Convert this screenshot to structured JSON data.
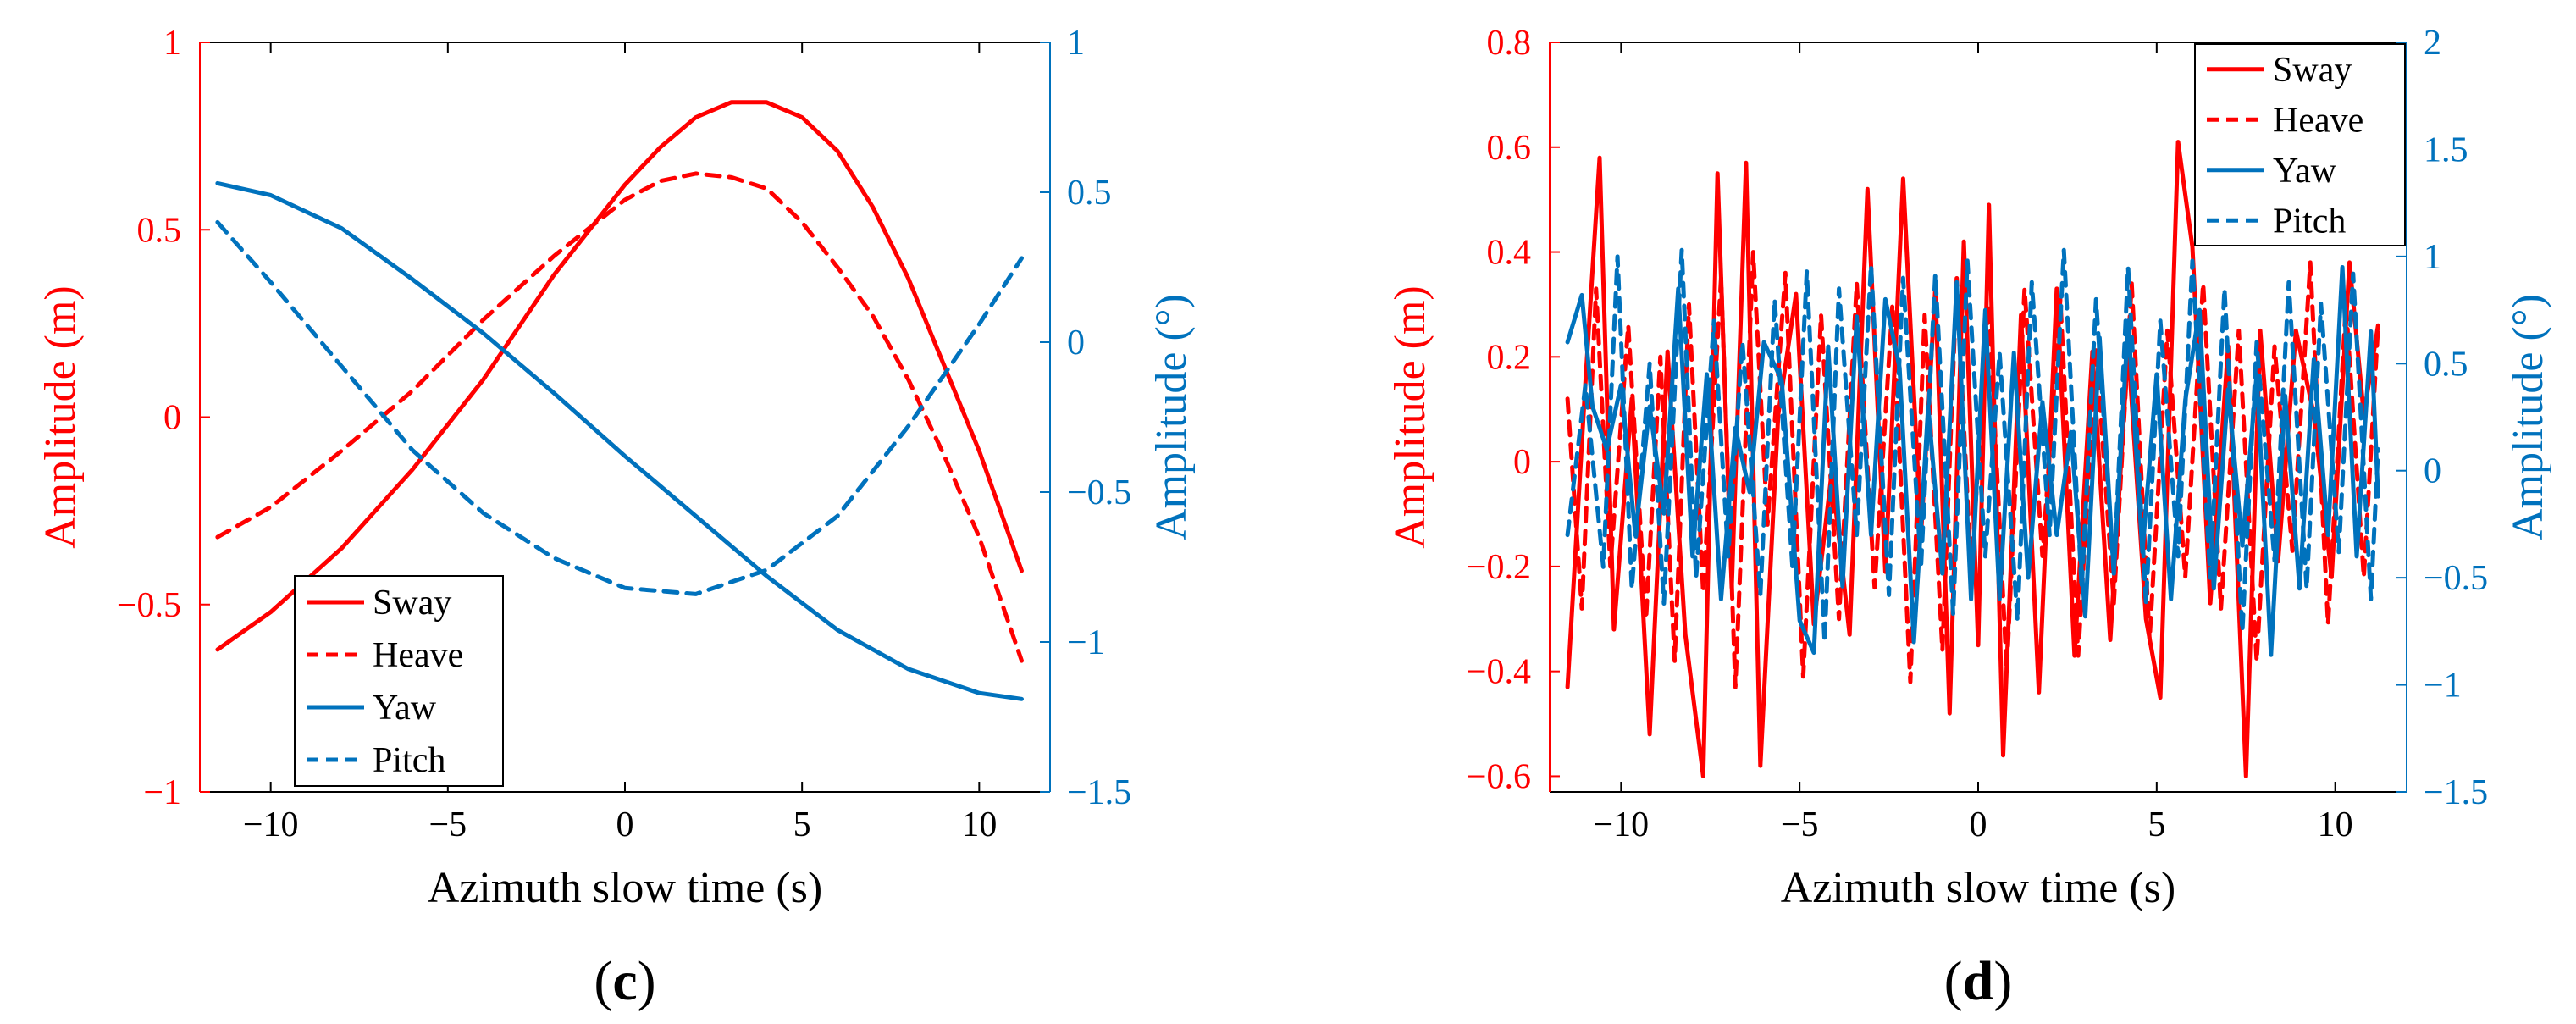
{
  "colors": {
    "red": "#ff0000",
    "blue": "#0072bd",
    "black": "#000000"
  },
  "chart_data": [
    {
      "panel_label": "c",
      "type": "line",
      "xlabel": "Azimuth slow time (s)",
      "ylabel_left": "Amplitude (m)",
      "ylabel_right": "Amplitude (°)",
      "xlim": [
        -12,
        12
      ],
      "xticks": [
        -10,
        -5,
        0,
        5,
        10
      ],
      "ylim_left": [
        -1,
        1
      ],
      "yticks_left": [
        -1,
        -0.5,
        0,
        0.5,
        1
      ],
      "ytick_labels_left": [
        "−1",
        "−0.5",
        "0",
        "0.5",
        "1"
      ],
      "ylim_right": [
        -1.5,
        1
      ],
      "yticks_right": [
        -1.5,
        -1,
        -0.5,
        0,
        0.5,
        1
      ],
      "ytick_labels_right": [
        "−1.5",
        "−1",
        "−0.5",
        "0",
        "0.5",
        "1"
      ],
      "xtick_labels": [
        "−10",
        "−5",
        "0",
        "5",
        "10"
      ],
      "legend_position": "bottom-left",
      "legend": [
        "Sway",
        "Heave",
        "Yaw",
        "Pitch"
      ],
      "series": [
        {
          "name": "Sway",
          "axis": "left",
          "color": "red",
          "style": "solid",
          "x": [
            -11.5,
            -10,
            -8,
            -6,
            -4,
            -2,
            0,
            1,
            2,
            3,
            4,
            5,
            6,
            7,
            8,
            9,
            10,
            11.2
          ],
          "y": [
            -0.62,
            -0.52,
            -0.35,
            -0.14,
            0.1,
            0.38,
            0.62,
            0.72,
            0.8,
            0.84,
            0.84,
            0.8,
            0.71,
            0.56,
            0.37,
            0.14,
            -0.09,
            -0.41
          ]
        },
        {
          "name": "Heave",
          "axis": "left",
          "color": "red",
          "style": "dashed",
          "x": [
            -11.5,
            -10,
            -8,
            -6,
            -4,
            -2,
            0,
            1,
            2,
            3,
            4,
            5,
            6,
            7,
            8,
            9,
            10,
            11.2
          ],
          "y": [
            -0.32,
            -0.24,
            -0.09,
            0.07,
            0.26,
            0.43,
            0.58,
            0.63,
            0.65,
            0.64,
            0.61,
            0.52,
            0.4,
            0.27,
            0.1,
            -0.1,
            -0.32,
            -0.65
          ]
        },
        {
          "name": "Yaw",
          "axis": "right",
          "color": "blue",
          "style": "solid",
          "x": [
            -11.5,
            -10,
            -8,
            -6,
            -4,
            -2,
            0,
            2,
            4,
            6,
            8,
            10,
            11.2
          ],
          "y": [
            0.53,
            0.49,
            0.38,
            0.21,
            0.03,
            -0.17,
            -0.38,
            -0.58,
            -0.78,
            -0.96,
            -1.09,
            -1.17,
            -1.19
          ]
        },
        {
          "name": "Pitch",
          "axis": "right",
          "color": "blue",
          "style": "dashed",
          "x": [
            -11.5,
            -10,
            -8,
            -6,
            -4,
            -2,
            0,
            2,
            4,
            6,
            8,
            10,
            11.2
          ],
          "y": [
            0.4,
            0.2,
            -0.08,
            -0.36,
            -0.57,
            -0.72,
            -0.82,
            -0.84,
            -0.76,
            -0.58,
            -0.28,
            0.06,
            0.28
          ]
        }
      ]
    },
    {
      "panel_label": "d",
      "type": "line",
      "xlabel": "Azimuth slow time (s)",
      "ylabel_left": "Amplitude (m)",
      "ylabel_right": "Amplitude (°)",
      "xlim": [
        -12,
        12
      ],
      "xticks": [
        -10,
        -5,
        0,
        5,
        10
      ],
      "ylim_left": [
        -0.63,
        0.8
      ],
      "yticks_left": [
        -0.6,
        -0.4,
        -0.2,
        0,
        0.2,
        0.4,
        0.6,
        0.8
      ],
      "ytick_labels_left": [
        "−0.6",
        "−0.4",
        "−0.2",
        "0",
        "0.2",
        "0.4",
        "0.6",
        "0.8"
      ],
      "ylim_right": [
        -1.5,
        2
      ],
      "yticks_right": [
        -1.5,
        -1,
        -0.5,
        0,
        0.5,
        1,
        1.5,
        2
      ],
      "ytick_labels_right": [
        "−1.5",
        "−1",
        "−0.5",
        "0",
        "0.5",
        "1",
        "1.5",
        "2"
      ],
      "xtick_labels": [
        "−10",
        "−5",
        "0",
        "5",
        "10"
      ],
      "legend_position": "top-right",
      "legend": [
        "Sway",
        "Heave",
        "Yaw",
        "Pitch"
      ],
      "series": [
        {
          "name": "Sway",
          "axis": "left",
          "color": "red",
          "style": "solid",
          "x": [
            -11.5,
            -11.0,
            -10.6,
            -10.2,
            -9.7,
            -9.2,
            -8.7,
            -8.2,
            -7.7,
            -7.3,
            -6.9,
            -6.5,
            -6.1,
            -5.6,
            -5.1,
            -4.6,
            -4.1,
            -3.6,
            -3.1,
            -2.6,
            -2.1,
            -1.6,
            -1.2,
            -0.8,
            -0.4,
            0.0,
            0.3,
            0.7,
            1.2,
            1.7,
            2.2,
            2.7,
            3.2,
            3.7,
            4.2,
            4.7,
            5.1,
            5.6,
            6.0,
            6.5,
            7.0,
            7.5,
            7.9,
            8.4,
            8.9,
            9.4,
            9.9,
            10.4,
            10.8,
            11.2
          ],
          "y": [
            -0.43,
            0.15,
            0.58,
            -0.32,
            0.12,
            -0.52,
            0.21,
            -0.33,
            -0.6,
            0.55,
            -0.24,
            0.57,
            -0.58,
            0.09,
            0.32,
            -0.31,
            -0.02,
            -0.33,
            0.52,
            -0.21,
            0.54,
            -0.14,
            0.33,
            -0.48,
            0.42,
            -0.35,
            0.49,
            -0.56,
            0.28,
            -0.44,
            0.33,
            -0.37,
            0.21,
            -0.34,
            0.22,
            -0.3,
            -0.45,
            0.61,
            0.41,
            -0.27,
            0.22,
            -0.6,
            0.25,
            -0.19,
            0.25,
            0.09,
            -0.22,
            0.38,
            0.09,
            0.26
          ]
        },
        {
          "name": "Heave",
          "axis": "left",
          "color": "red",
          "style": "dashed",
          "x": [
            -11.5,
            -11.1,
            -10.7,
            -10.3,
            -9.8,
            -9.3,
            -8.9,
            -8.5,
            -8.1,
            -7.7,
            -7.2,
            -6.8,
            -6.3,
            -5.9,
            -5.4,
            -4.9,
            -4.4,
            -3.9,
            -3.4,
            -2.9,
            -2.4,
            -1.9,
            -1.5,
            -1.0,
            -0.6,
            -0.2,
            0.3,
            0.8,
            1.3,
            1.8,
            2.3,
            2.8,
            3.3,
            3.8,
            4.3,
            4.8,
            5.3,
            5.8,
            6.3,
            6.8,
            7.3,
            7.8,
            8.3,
            8.8,
            9.3,
            9.8,
            10.3,
            10.8,
            11.2
          ],
          "y": [
            0.12,
            -0.28,
            0.33,
            -0.2,
            0.26,
            -0.3,
            0.2,
            -0.38,
            0.3,
            -0.25,
            0.35,
            -0.43,
            0.4,
            -0.12,
            0.36,
            -0.41,
            0.28,
            -0.3,
            0.34,
            -0.24,
            0.3,
            -0.42,
            0.28,
            -0.36,
            0.35,
            -0.21,
            0.3,
            -0.4,
            0.33,
            -0.18,
            0.31,
            -0.37,
            0.22,
            -0.27,
            0.34,
            -0.34,
            0.25,
            -0.22,
            0.34,
            -0.28,
            0.25,
            -0.38,
            0.22,
            -0.17,
            0.38,
            -0.31,
            0.3,
            -0.22,
            0.26
          ]
        },
        {
          "name": "Yaw",
          "axis": "right",
          "color": "blue",
          "style": "solid",
          "x": [
            -11.5,
            -11.1,
            -10.8,
            -10.4,
            -10.0,
            -9.6,
            -9.2,
            -8.8,
            -8.4,
            -8.0,
            -7.6,
            -7.2,
            -6.8,
            -6.4,
            -6.0,
            -5.5,
            -5.0,
            -4.6,
            -4.2,
            -3.8,
            -3.4,
            -3.0,
            -2.6,
            -2.2,
            -1.8,
            -1.4,
            -1.0,
            -0.6,
            -0.2,
            0.2,
            0.6,
            1.0,
            1.4,
            1.8,
            2.2,
            2.6,
            3.0,
            3.4,
            3.8,
            4.2,
            4.6,
            5.0,
            5.4,
            5.8,
            6.2,
            6.6,
            7.0,
            7.4,
            7.8,
            8.2,
            8.6,
            9.0,
            9.4,
            9.8,
            10.2,
            10.6,
            11.0,
            11.2
          ],
          "y": [
            0.6,
            0.82,
            0.3,
            0.1,
            0.4,
            -0.3,
            0.3,
            -0.2,
            0.85,
            -0.4,
            0.45,
            -0.6,
            0.2,
            -0.1,
            0.6,
            0.42,
            -0.7,
            -0.85,
            0.58,
            -0.54,
            0.72,
            -0.3,
            0.8,
            0.48,
            -0.8,
            0.3,
            -0.48,
            0.88,
            -0.6,
            0.75,
            -0.6,
            0.55,
            -0.5,
            0.32,
            -0.3,
            0.18,
            -0.68,
            0.62,
            -0.48,
            0.7,
            -0.38,
            0.45,
            -0.6,
            0.33,
            0.75,
            -0.55,
            0.38,
            -0.35,
            0.45,
            -0.86,
            0.35,
            -0.55,
            0.52,
            -0.3,
            0.95,
            -0.4,
            0.65,
            -0.12
          ]
        },
        {
          "name": "Pitch",
          "axis": "right",
          "color": "blue",
          "style": "dashed",
          "x": [
            -11.5,
            -11.0,
            -10.5,
            -10.1,
            -9.7,
            -9.2,
            -8.8,
            -8.3,
            -7.9,
            -7.4,
            -7.0,
            -6.6,
            -6.1,
            -5.7,
            -5.2,
            -4.8,
            -4.3,
            -3.9,
            -3.4,
            -3.0,
            -2.5,
            -2.1,
            -1.6,
            -1.2,
            -0.7,
            -0.3,
            0.2,
            0.6,
            1.1,
            1.5,
            2.0,
            2.4,
            2.9,
            3.3,
            3.8,
            4.2,
            4.7,
            5.1,
            5.6,
            6.0,
            6.5,
            6.9,
            7.4,
            7.8,
            8.3,
            8.7,
            9.2,
            9.6,
            10.1,
            10.5,
            11.0,
            11.2
          ],
          "y": [
            -0.3,
            0.4,
            -0.45,
            1.0,
            -0.55,
            0.5,
            -0.62,
            1.03,
            -0.5,
            0.7,
            -0.4,
            0.6,
            -0.58,
            0.8,
            -0.45,
            0.93,
            -0.8,
            0.85,
            -0.3,
            0.96,
            -0.58,
            0.9,
            -0.45,
            0.92,
            -0.67,
            0.98,
            -0.4,
            0.55,
            -0.7,
            0.88,
            -0.3,
            1.03,
            -0.55,
            0.8,
            -0.48,
            0.95,
            -0.62,
            0.7,
            -0.4,
            0.98,
            -0.5,
            0.85,
            -0.75,
            0.6,
            -0.42,
            0.88,
            -0.55,
            0.78,
            -0.38,
            0.92,
            -0.6,
            0.1
          ]
        }
      ]
    }
  ]
}
